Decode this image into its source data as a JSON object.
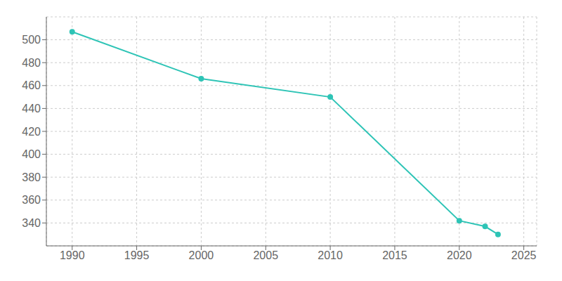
{
  "chart_data": {
    "type": "line",
    "x": [
      1990,
      2000,
      2010,
      2020,
      2022,
      2023
    ],
    "values": [
      507,
      466,
      450,
      342,
      337,
      330
    ],
    "color": "#2ec4b6",
    "marker": "circle",
    "xlim": [
      1988,
      2026
    ],
    "xticks": [
      1990,
      1995,
      2000,
      2005,
      2010,
      2015,
      2020,
      2025
    ],
    "ylim": [
      320,
      520
    ],
    "yticks": [
      340,
      360,
      380,
      400,
      420,
      440,
      460,
      480,
      500
    ],
    "grid": true
  }
}
